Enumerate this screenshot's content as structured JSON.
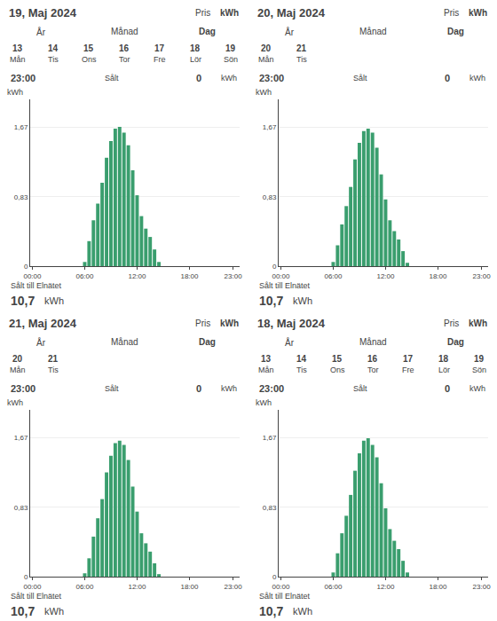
{
  "chart_data": [
    {
      "type": "bar",
      "title": "19, Maj 2024",
      "ylabel": "kWh",
      "categories": [
        "00:00",
        null,
        null,
        null,
        null,
        null,
        null,
        null,
        null,
        null,
        null,
        null,
        "06:00",
        null,
        null,
        null,
        null,
        null,
        null,
        null,
        null,
        null,
        null,
        null,
        "12:00",
        null,
        null,
        null,
        null,
        null,
        null,
        null,
        null,
        null,
        null,
        null,
        "18:00",
        null,
        null,
        null,
        null,
        null,
        null,
        null,
        null,
        null,
        "23:00",
        null
      ],
      "values": [
        0,
        0,
        0,
        0,
        0,
        0,
        0,
        0,
        0,
        0,
        0,
        0,
        0.05,
        0.3,
        0.55,
        0.75,
        1.0,
        1.3,
        1.5,
        1.65,
        1.67,
        1.6,
        1.45,
        1.15,
        0.85,
        0.6,
        0.45,
        0.35,
        0.2,
        0.05,
        0,
        0,
        0,
        0,
        0,
        0,
        0,
        0,
        0,
        0,
        0,
        0,
        0,
        0,
        0,
        0,
        0,
        0
      ],
      "color": "#3a9e6e",
      "ylim": [
        0,
        2.0
      ],
      "yticks": [
        0,
        {
          "value": 0.83,
          "label": "0,83"
        },
        {
          "value": 1.67,
          "label": "1,67"
        }
      ],
      "grid": true,
      "annotations": [
        [
          "Pris",
          "kWh"
        ],
        [
          "År",
          "Månad",
          "Dag"
        ],
        [
          "13",
          "14",
          "15",
          "16",
          "17",
          "18",
          "19"
        ],
        [
          "Mån",
          "Tis",
          "Ons",
          "Tor",
          "Fre",
          "Lör",
          "Sön"
        ],
        [
          "23:00",
          "Sålt",
          "0",
          "kWh"
        ],
        [
          "Sålt till Elnätet"
        ],
        [
          "10,7",
          "kWh"
        ]
      ]
    },
    {
      "type": "bar",
      "title": "20, Maj 2024",
      "ylabel": "kWh",
      "categories": [
        "00:00",
        null,
        null,
        null,
        null,
        null,
        null,
        null,
        null,
        null,
        null,
        null,
        "06:00",
        null,
        null,
        null,
        null,
        null,
        null,
        null,
        null,
        null,
        null,
        null,
        "12:00",
        null,
        null,
        null,
        null,
        null,
        null,
        null,
        null,
        null,
        null,
        null,
        "18:00",
        null,
        null,
        null,
        null,
        null,
        null,
        null,
        null,
        null,
        "23:00",
        null
      ],
      "values": [
        0,
        0,
        0,
        0,
        0,
        0,
        0,
        0,
        0,
        0,
        0,
        0,
        0.05,
        0.25,
        0.5,
        0.72,
        0.95,
        1.28,
        1.48,
        1.62,
        1.65,
        1.6,
        1.42,
        1.1,
        0.8,
        0.55,
        0.42,
        0.32,
        0.18,
        0.04,
        0,
        0,
        0,
        0,
        0,
        0,
        0,
        0,
        0,
        0,
        0,
        0,
        0,
        0,
        0,
        0,
        0,
        0
      ],
      "color": "#3a9e6e",
      "ylim": [
        0,
        2.0
      ],
      "yticks": [
        0,
        {
          "value": 0.83,
          "label": "0,83"
        },
        {
          "value": 1.67,
          "label": "1,67"
        }
      ],
      "grid": true,
      "annotations": [
        [
          "Pris",
          "kWh"
        ],
        [
          "År",
          "Månad",
          "Dag"
        ],
        [
          "20",
          "21"
        ],
        [
          "Mån",
          "Tis"
        ],
        [
          "23:00",
          "Sålt",
          "0",
          "kWh"
        ],
        [
          "Sålt till Elnätet"
        ],
        [
          "10,7",
          "kWh"
        ]
      ]
    },
    {
      "type": "bar",
      "title": "21, Maj 2024",
      "ylabel": "kWh",
      "categories": [
        "00:00",
        null,
        null,
        null,
        null,
        null,
        null,
        null,
        null,
        null,
        null,
        null,
        "06:00",
        null,
        null,
        null,
        null,
        null,
        null,
        null,
        null,
        null,
        null,
        null,
        "12:00",
        null,
        null,
        null,
        null,
        null,
        null,
        null,
        null,
        null,
        null,
        null,
        "18:00",
        null,
        null,
        null,
        null,
        null,
        null,
        null,
        null,
        null,
        "23:00",
        null
      ],
      "values": [
        0,
        0,
        0,
        0,
        0,
        0,
        0,
        0,
        0,
        0,
        0,
        0,
        0.04,
        0.22,
        0.48,
        0.7,
        0.93,
        1.25,
        1.45,
        1.6,
        1.63,
        1.58,
        1.4,
        1.08,
        0.78,
        0.52,
        0.4,
        0.3,
        0.16,
        0.03,
        0,
        0,
        0,
        0,
        0,
        0,
        0,
        0,
        0,
        0,
        0,
        0,
        0,
        0,
        0,
        0,
        0,
        0
      ],
      "color": "#3a9e6e",
      "ylim": [
        0,
        2.0
      ],
      "yticks": [
        0,
        {
          "value": 0.83,
          "label": "0,83"
        },
        {
          "value": 1.67,
          "label": "1,67"
        }
      ],
      "grid": true,
      "annotations": [
        [
          "Pris",
          "kWh"
        ],
        [
          "År",
          "Månad",
          "Dag"
        ],
        [
          "20",
          "21"
        ],
        [
          "Mån",
          "Tis"
        ],
        [
          "23:00",
          "Sålt",
          "0",
          "kWh"
        ],
        [
          "Sålt till Elnätet"
        ],
        [
          "10,7",
          "kWh"
        ]
      ]
    },
    {
      "type": "bar",
      "title": "18, Maj 2024",
      "ylabel": "kWh",
      "categories": [
        "00:00",
        null,
        null,
        null,
        null,
        null,
        null,
        null,
        null,
        null,
        null,
        null,
        "06:00",
        null,
        null,
        null,
        null,
        null,
        null,
        null,
        null,
        null,
        null,
        null,
        "12:00",
        null,
        null,
        null,
        null,
        null,
        null,
        null,
        null,
        null,
        null,
        null,
        "18:00",
        null,
        null,
        null,
        null,
        null,
        null,
        null,
        null,
        null,
        "23:00",
        null
      ],
      "values": [
        0,
        0,
        0,
        0,
        0,
        0,
        0,
        0,
        0,
        0,
        0,
        0,
        0.05,
        0.28,
        0.52,
        0.73,
        0.98,
        1.27,
        1.48,
        1.63,
        1.66,
        1.58,
        1.43,
        1.12,
        0.82,
        0.57,
        0.43,
        0.33,
        0.19,
        0.05,
        0,
        0,
        0,
        0,
        0,
        0,
        0,
        0,
        0,
        0,
        0,
        0,
        0,
        0,
        0,
        0,
        0,
        0
      ],
      "color": "#3a9e6e",
      "ylim": [
        0,
        2.0
      ],
      "yticks": [
        0,
        {
          "value": 0.83,
          "label": "0,83"
        },
        {
          "value": 1.67,
          "label": "1,67"
        }
      ],
      "grid": true,
      "annotations": [
        [
          "Pris",
          "kWh"
        ],
        [
          "År",
          "Månad",
          "Dag"
        ],
        [
          "13",
          "14",
          "15",
          "16",
          "17",
          "18",
          "19"
        ],
        [
          "Mån",
          "Tis",
          "Ons",
          "Tor",
          "Fre",
          "Lör",
          "Sön"
        ],
        [
          "23:00",
          "Sålt",
          "0",
          "kWh"
        ],
        [
          "Sålt till Elnätet"
        ],
        [
          "10,7",
          "kWh"
        ]
      ]
    }
  ]
}
